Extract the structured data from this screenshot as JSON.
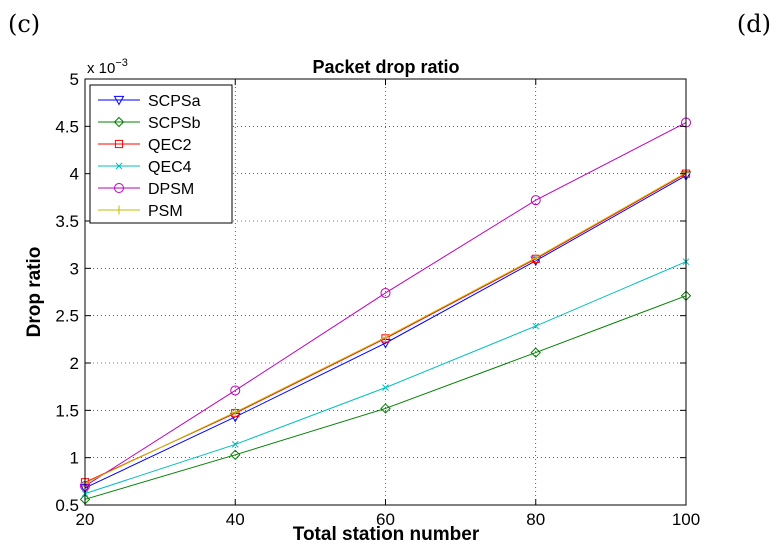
{
  "panel_labels": {
    "left": "(c)",
    "right": "(d)"
  },
  "chart_data": {
    "type": "line",
    "title": "Packet drop ratio",
    "xlabel": "Total station number",
    "ylabel": "Drop ratio",
    "y_multiplier": "x 10",
    "y_exponent": "−3",
    "x": [
      20,
      40,
      60,
      80,
      100
    ],
    "xlim": [
      20,
      100
    ],
    "ylim": [
      0.5,
      5
    ],
    "xticks": [
      "20",
      "40",
      "60",
      "80",
      "100"
    ],
    "yticks": [
      "0.5",
      "1",
      "1.5",
      "2",
      "2.5",
      "3",
      "3.5",
      "4",
      "4.5",
      "5"
    ],
    "grid": true,
    "legend_position": "top-left",
    "series": [
      {
        "name": "SCPSa",
        "color": "#0000ff",
        "marker": "triangle-down",
        "values": [
          0.68,
          1.43,
          2.21,
          3.08,
          3.98
        ]
      },
      {
        "name": "SCPSb",
        "color": "#008000",
        "marker": "diamond",
        "values": [
          0.56,
          1.03,
          1.52,
          2.11,
          2.71
        ]
      },
      {
        "name": "QEC2",
        "color": "#ff0000",
        "marker": "square",
        "values": [
          0.74,
          1.47,
          2.26,
          3.1,
          4.0
        ]
      },
      {
        "name": "QEC4",
        "color": "#00bfbf",
        "marker": "x",
        "values": [
          0.62,
          1.14,
          1.74,
          2.39,
          3.07
        ]
      },
      {
        "name": "DPSM",
        "color": "#bf00bf",
        "marker": "circle",
        "values": [
          0.7,
          1.71,
          2.74,
          3.72,
          4.54
        ]
      },
      {
        "name": "PSM",
        "color": "#bfbf00",
        "marker": "plus",
        "values": [
          0.73,
          1.48,
          2.27,
          3.11,
          4.01
        ]
      }
    ]
  }
}
